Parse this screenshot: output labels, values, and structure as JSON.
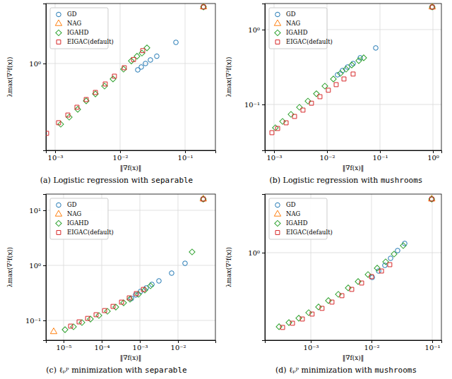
{
  "chart_data": [
    {
      "type": "scatter",
      "title": "(a) Logistic regression with separable",
      "x_label": "‖∇f(x)‖",
      "y_label": "λmax(∇²f(x))",
      "log": true,
      "grid": true,
      "legend": "upper-left",
      "xlim": [
        0.000722,
        0.293
      ],
      "ylim": [
        0.189,
        3.16
      ],
      "xticks": [
        {
          "value": 0.001,
          "label": "10⁻³"
        },
        {
          "value": 0.01,
          "label": "10⁻²"
        },
        {
          "value": 0.1,
          "label": "10⁻¹"
        }
      ],
      "yticks": [
        {
          "value": 1,
          "label": "10⁰"
        }
      ],
      "series": [
        {
          "name": "GD",
          "color": "#1f77b4",
          "marker": "circle",
          "x": [
            0.192,
            0.0723,
            0.0367,
            0.0293,
            0.0246,
            0.0212,
            0.0187
          ],
          "values": [
            2.96,
            1.5,
            1.15,
            1.07,
            1.0,
            0.935,
            0.885
          ]
        },
        {
          "name": "NAG",
          "color": "#ff7f0e",
          "marker": "triangle",
          "x": [
            0.192
          ],
          "values": [
            2.96
          ]
        },
        {
          "name": "IGAHD",
          "color": "#2ca02c",
          "marker": "diamond",
          "x": [
            0.192,
            0.0259,
            0.0217,
            0.0182,
            0.0149,
            0.0113,
            0.00778,
            0.00577,
            0.00417,
            0.00301,
            0.00223,
            0.00165,
            0.00122
          ],
          "values": [
            2.96,
            1.35,
            1.22,
            1.15,
            1.05,
            0.897,
            0.743,
            0.648,
            0.558,
            0.488,
            0.415,
            0.357,
            0.312
          ]
        },
        {
          "name": "EIGAC(default)",
          "color": "#d62728",
          "marker": "square",
          "x": [
            0.192,
            0.0223,
            0.0161,
            0.0116,
            0.00818,
            0.00591,
            0.00417,
            0.00301,
            0.00217,
            0.00157,
            0.00113,
            0.00074
          ],
          "values": [
            2.96,
            1.28,
            1.08,
            0.922,
            0.784,
            0.675,
            0.574,
            0.501,
            0.432,
            0.372,
            0.321,
            0.262
          ]
        }
      ]
    },
    {
      "type": "scatter",
      "title": "(b) Logistic regression with mushrooms",
      "x_label": "‖∇f(x)‖",
      "y_label": "λmax(∇²f(x))",
      "log": true,
      "grid": true,
      "legend": "upper-left",
      "xlim": [
        0.000671,
        1.445
      ],
      "ylim": [
        0.0244,
        2.23
      ],
      "xticks": [
        {
          "value": 0.001,
          "label": "10⁻³"
        },
        {
          "value": 0.01,
          "label": "10⁻²"
        },
        {
          "value": 0.1,
          "label": "10⁻¹"
        },
        {
          "value": 1,
          "label": "10⁰"
        }
      ],
      "yticks": [
        {
          "value": 0.1,
          "label": "10⁻¹"
        },
        {
          "value": 1,
          "label": "10⁰"
        }
      ],
      "series": [
        {
          "name": "GD",
          "color": "#1f77b4",
          "marker": "circle",
          "x": [
            0.97,
            0.0832,
            0.0424,
            0.0311,
            0.0244,
            0.0196,
            0.0158
          ],
          "values": [
            2.0,
            0.569,
            0.42,
            0.352,
            0.316,
            0.284,
            0.249
          ]
        },
        {
          "name": "NAG",
          "color": "#ff7f0e",
          "marker": "triangle",
          "x": [
            0.97
          ],
          "values": [
            2.0
          ]
        },
        {
          "name": "IGAHD",
          "color": "#2ca02c",
          "marker": "diamond",
          "x": [
            0.97,
            0.0493,
            0.0398,
            0.0293,
            0.0229,
            0.0179,
            0.0132,
            0.00912,
            0.00631,
            0.00437,
            0.00302,
            0.00209,
            0.00145,
            0.00106
          ],
          "values": [
            2.0,
            0.42,
            0.385,
            0.337,
            0.296,
            0.26,
            0.219,
            0.176,
            0.139,
            0.111,
            0.0917,
            0.0738,
            0.0594,
            0.0489
          ]
        },
        {
          "name": "EIGAC(default)",
          "color": "#d62728",
          "marker": "square",
          "x": [
            0.97,
            0.0311,
            0.0209,
            0.0149,
            0.0106,
            0.00736,
            0.00509,
            0.00352,
            0.00244,
            0.00169,
            0.00117,
            0.000912
          ],
          "values": [
            2.0,
            0.255,
            0.219,
            0.184,
            0.155,
            0.127,
            0.104,
            0.0841,
            0.0692,
            0.0569,
            0.0478,
            0.042
          ]
        }
      ]
    },
    {
      "type": "scatter",
      "title": "(c) ℓₚᵖ minimization with separable",
      "x_label": "‖∇f(x)‖",
      "y_label": "λmax(∇²f(x))",
      "log": true,
      "grid": true,
      "legend": "upper-left",
      "xlim": [
        3.44e-06,
        0.0957
      ],
      "ylim": [
        0.0438,
        19.7
      ],
      "xticks": [
        {
          "value": 1e-05,
          "label": "10⁻⁵"
        },
        {
          "value": 0.0001,
          "label": "10⁻⁴"
        },
        {
          "value": 0.001,
          "label": "10⁻³"
        },
        {
          "value": 0.01,
          "label": "10⁻²"
        }
      ],
      "yticks": [
        {
          "value": 0.1,
          "label": "10⁻¹"
        },
        {
          "value": 1,
          "label": "10⁰"
        },
        {
          "value": 10,
          "label": "10¹"
        }
      ],
      "series": [
        {
          "name": "GD",
          "color": "#1f77b4",
          "marker": "circle",
          "x": [
            0.046,
            0.0153,
            0.00681,
            0.00316,
            0.00207,
            0.00147,
            0.00104,
            0.000774,
            0.0006
          ],
          "values": [
            16.0,
            1.09,
            0.723,
            0.522,
            0.451,
            0.389,
            0.336,
            0.29,
            0.25
          ]
        },
        {
          "name": "NAG",
          "color": "#ff7f0e",
          "marker": "triangle",
          "x": [
            0.046,
            5.5e-06
          ],
          "values": [
            16.0,
            0.0623
          ]
        },
        {
          "name": "IGAHD",
          "color": "#2ca02c",
          "marker": "diamond",
          "x": [
            0.046,
            0.0234,
            0.0019,
            0.00135,
            0.000918,
            0.000551,
            0.000375,
            0.000234,
            0.000141,
            8.43e-05,
            5.06e-05,
            3.03e-05,
            1.82e-05,
            1.09e-05
          ],
          "values": [
            16.0,
            1.75,
            0.425,
            0.356,
            0.298,
            0.243,
            0.209,
            0.175,
            0.147,
            0.123,
            0.106,
            0.0916,
            0.0767,
            0.0681
          ]
        },
        {
          "name": "EIGAC(default)",
          "color": "#d62728",
          "marker": "square",
          "x": [
            0.046,
            0.00124,
            0.000807,
            0.000527,
            0.00033,
            0.000198,
            0.000119,
            7.11e-05,
            4.27e-05,
            2.55e-05,
            1.53e-05
          ],
          "values": [
            16.0,
            0.366,
            0.307,
            0.257,
            0.215,
            0.18,
            0.151,
            0.127,
            0.109,
            0.0942,
            0.0789
          ]
        }
      ]
    },
    {
      "type": "scatter",
      "title": "(d) ℓₚᵖ minimization with mushrooms",
      "x_label": "‖∇f(x)‖",
      "y_label": "λmax(∇²f(x))",
      "log": true,
      "grid": true,
      "legend": "upper-left",
      "xlim": [
        0.000175,
        0.1416
      ],
      "ylim": [
        0.13,
        3.92
      ],
      "xticks": [
        {
          "value": 0.001,
          "label": "10⁻³"
        },
        {
          "value": 0.01,
          "label": "10⁻²"
        },
        {
          "value": 0.1,
          "label": "10⁻¹"
        }
      ],
      "yticks": [
        {
          "value": 1,
          "label": "10⁰"
        }
      ],
      "series": [
        {
          "name": "GD",
          "color": "#1f77b4",
          "marker": "circle",
          "x": [
            0.098,
            0.0352,
            0.0269,
            0.0206,
            0.0166,
            0.0131,
            0.0103
          ],
          "values": [
            3.49,
            1.24,
            1.05,
            0.877,
            0.744,
            0.652,
            0.562
          ]
        },
        {
          "name": "NAG",
          "color": "#ff7f0e",
          "marker": "triangle",
          "x": [
            0.098
          ],
          "values": [
            3.49
          ]
        },
        {
          "name": "IGAHD",
          "color": "#2ca02c",
          "marker": "diamond",
          "x": [
            0.098,
            0.0333,
            0.0235,
            0.0171,
            0.0124,
            0.00875,
            0.00601,
            0.00413,
            0.00284,
            0.00195,
            0.00134,
            0.000923,
            0.000634,
            0.000436,
            0.0003
          ],
          "values": [
            3.49,
            1.18,
            0.968,
            0.808,
            0.697,
            0.601,
            0.51,
            0.44,
            0.379,
            0.327,
            0.282,
            0.247,
            0.217,
            0.196,
            0.178
          ]
        },
        {
          "name": "EIGAC(default)",
          "color": "#d62728",
          "marker": "square",
          "x": [
            0.098,
            0.02,
            0.0146,
            0.01,
            0.00687,
            0.00472,
            0.00325,
            0.00223,
            0.00153,
            0.00105,
            0.000725,
            0.000499,
            0.000343
          ],
          "values": [
            3.49,
            0.756,
            0.652,
            0.572,
            0.493,
            0.425,
            0.367,
            0.316,
            0.273,
            0.239,
            0.213,
            0.193,
            0.175
          ]
        }
      ]
    }
  ]
}
